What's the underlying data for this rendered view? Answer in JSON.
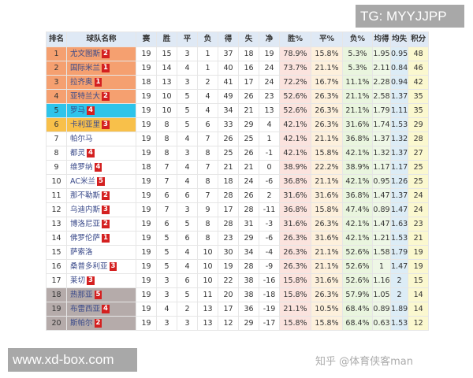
{
  "headers": [
    "排名",
    "球队名称",
    "赛",
    "胜",
    "平",
    "负",
    "得",
    "失",
    "净",
    "胜%",
    "平%",
    "负%",
    "均得",
    "均失",
    "积分"
  ],
  "zone_colors": {
    "champions_league": "#f5a070",
    "europa_league": "#2ec4ea",
    "conference": "#f8c04a",
    "relegation": "#b5abaa",
    "badge": "#d42020"
  },
  "rows": [
    {
      "rank": "1",
      "team": "尤文图斯",
      "badge": "2",
      "zone": "cl",
      "stats": [
        "19",
        "15",
        "3",
        "1",
        "37",
        "18",
        "19",
        "78.9%",
        "15.8%",
        "5.3%",
        "1.95",
        "0.95",
        "48"
      ]
    },
    {
      "rank": "2",
      "team": "国际米兰",
      "badge": "1",
      "zone": "cl",
      "stats": [
        "19",
        "14",
        "4",
        "1",
        "40",
        "16",
        "24",
        "73.7%",
        "21.1%",
        "5.3%",
        "2.11",
        "0.84",
        "46"
      ]
    },
    {
      "rank": "3",
      "team": "拉齐奥",
      "badge": "1",
      "zone": "cl",
      "stats": [
        "18",
        "13",
        "3",
        "2",
        "41",
        "17",
        "24",
        "72.2%",
        "16.7%",
        "11.1%",
        "2.28",
        "0.94",
        "42"
      ]
    },
    {
      "rank": "4",
      "team": "亚特兰大",
      "badge": "2",
      "zone": "cl",
      "stats": [
        "19",
        "10",
        "5",
        "4",
        "49",
        "26",
        "23",
        "52.6%",
        "26.3%",
        "21.1%",
        "2.58",
        "1.37",
        "35"
      ]
    },
    {
      "rank": "5",
      "team": "罗马",
      "badge": "4",
      "zone": "el",
      "stats": [
        "19",
        "10",
        "5",
        "4",
        "34",
        "21",
        "13",
        "52.6%",
        "26.3%",
        "21.1%",
        "1.79",
        "1.11",
        "35"
      ]
    },
    {
      "rank": "6",
      "team": "卡利亚里",
      "badge": "3",
      "zone": "ecl",
      "stats": [
        "19",
        "8",
        "5",
        "6",
        "33",
        "29",
        "4",
        "42.1%",
        "26.3%",
        "31.6%",
        "1.74",
        "1.53",
        "29"
      ]
    },
    {
      "rank": "7",
      "team": "帕尔马",
      "badge": "",
      "zone": "",
      "stats": [
        "19",
        "8",
        "4",
        "7",
        "26",
        "25",
        "1",
        "42.1%",
        "21.1%",
        "36.8%",
        "1.37",
        "1.32",
        "28"
      ]
    },
    {
      "rank": "8",
      "team": "都灵",
      "badge": "4",
      "zone": "",
      "stats": [
        "19",
        "8",
        "3",
        "8",
        "25",
        "26",
        "-1",
        "42.1%",
        "15.8%",
        "42.1%",
        "1.32",
        "1.37",
        "27"
      ]
    },
    {
      "rank": "9",
      "team": "维罗纳",
      "badge": "4",
      "zone": "",
      "stats": [
        "18",
        "7",
        "4",
        "7",
        "21",
        "21",
        "0",
        "38.9%",
        "22.2%",
        "38.9%",
        "1.17",
        "1.17",
        "25"
      ]
    },
    {
      "rank": "10",
      "team": "AC米兰",
      "badge": "5",
      "zone": "",
      "stats": [
        "19",
        "7",
        "4",
        "8",
        "18",
        "24",
        "-6",
        "36.8%",
        "21.1%",
        "42.1%",
        "0.95",
        "1.26",
        "25"
      ]
    },
    {
      "rank": "11",
      "team": "那不勒斯",
      "badge": "2",
      "zone": "",
      "stats": [
        "19",
        "6",
        "6",
        "7",
        "28",
        "26",
        "2",
        "31.6%",
        "31.6%",
        "36.8%",
        "1.47",
        "1.37",
        "24"
      ]
    },
    {
      "rank": "12",
      "team": "乌迪内斯",
      "badge": "3",
      "zone": "",
      "stats": [
        "19",
        "7",
        "3",
        "9",
        "17",
        "28",
        "-11",
        "36.8%",
        "15.8%",
        "47.4%",
        "0.89",
        "1.47",
        "24"
      ]
    },
    {
      "rank": "13",
      "team": "博洛尼亚",
      "badge": "2",
      "zone": "",
      "stats": [
        "19",
        "6",
        "5",
        "8",
        "28",
        "31",
        "-3",
        "31.6%",
        "26.3%",
        "42.1%",
        "1.47",
        "1.63",
        "23"
      ]
    },
    {
      "rank": "14",
      "team": "佛罗伦萨",
      "badge": "1",
      "zone": "",
      "stats": [
        "19",
        "5",
        "6",
        "8",
        "23",
        "29",
        "-6",
        "26.3%",
        "31.6%",
        "42.1%",
        "1.21",
        "1.53",
        "21"
      ]
    },
    {
      "rank": "15",
      "team": "萨索洛",
      "badge": "",
      "zone": "",
      "stats": [
        "19",
        "5",
        "4",
        "10",
        "30",
        "34",
        "-4",
        "26.3%",
        "21.1%",
        "52.6%",
        "1.58",
        "1.79",
        "19"
      ]
    },
    {
      "rank": "16",
      "team": "桑普多利亚",
      "badge": "3",
      "zone": "",
      "stats": [
        "19",
        "5",
        "4",
        "10",
        "19",
        "28",
        "-9",
        "26.3%",
        "21.1%",
        "52.6%",
        "1",
        "1.47",
        "19"
      ]
    },
    {
      "rank": "17",
      "team": "莱切",
      "badge": "3",
      "zone": "",
      "stats": [
        "19",
        "3",
        "6",
        "10",
        "22",
        "38",
        "-16",
        "15.8%",
        "31.6%",
        "52.6%",
        "1.16",
        "2",
        "15"
      ]
    },
    {
      "rank": "18",
      "team": "热那亚",
      "badge": "5",
      "zone": "rel",
      "stats": [
        "19",
        "3",
        "5",
        "11",
        "20",
        "38",
        "-18",
        "15.8%",
        "26.3%",
        "57.9%",
        "1.05",
        "2",
        "14"
      ]
    },
    {
      "rank": "19",
      "team": "布雷西亚",
      "badge": "4",
      "zone": "rel",
      "stats": [
        "19",
        "4",
        "2",
        "13",
        "17",
        "36",
        "-19",
        "21.1%",
        "10.5%",
        "68.4%",
        "0.89",
        "1.89",
        "14"
      ]
    },
    {
      "rank": "20",
      "team": "斯帕尔",
      "badge": "2",
      "zone": "rel",
      "stats": [
        "19",
        "3",
        "3",
        "13",
        "12",
        "29",
        "-17",
        "15.8%",
        "15.8%",
        "68.4%",
        "0.63",
        "1.53",
        "12"
      ]
    }
  ],
  "watermarks": {
    "tg": "TG: MYYJJPP",
    "site": "www.xd-box.com",
    "zhihu": "知乎 @体育侠客man"
  }
}
